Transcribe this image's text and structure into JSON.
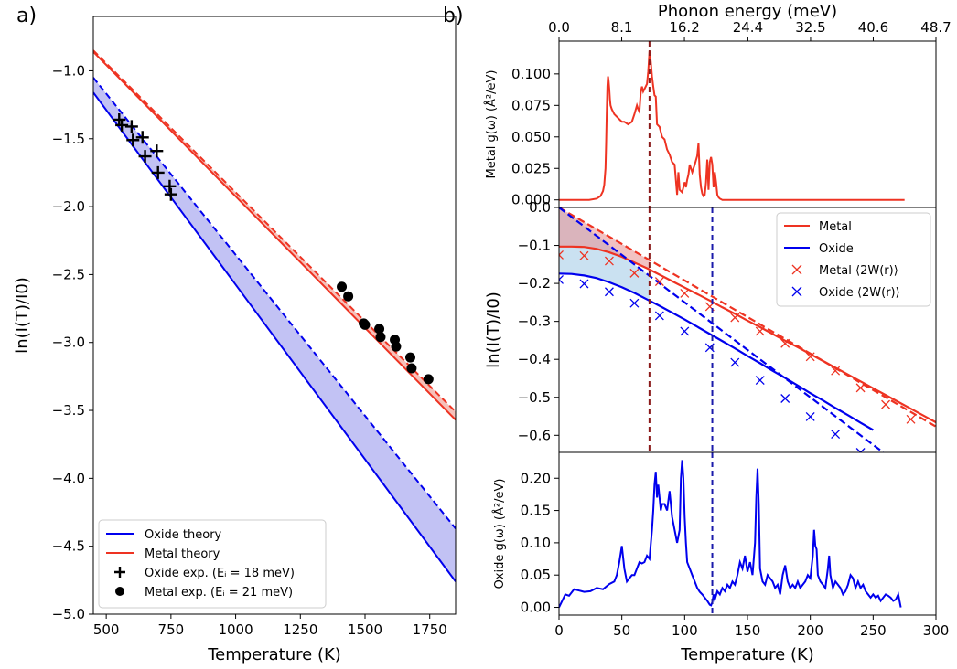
{
  "panel_labels": {
    "a": "a)",
    "b": "b)"
  },
  "chart_data": [
    {
      "id": "a",
      "type": "line",
      "xlabel": "Temperature (K)",
      "ylabel": "ln(I(T)/I0)",
      "xlim": [
        450,
        1850
      ],
      "ylim": [
        -5.0,
        -0.6
      ],
      "xticks": [
        500,
        750,
        1000,
        1250,
        1500,
        1750
      ],
      "xtick_labels": [
        "500",
        "750",
        "1000",
        "1250",
        "1500",
        "1750"
      ],
      "yticks": [
        -5.0,
        -4.5,
        -4.0,
        -3.5,
        -3.0,
        -2.5,
        -2.0,
        -1.5,
        -1.0
      ],
      "ytick_labels": [
        "−5.0",
        "−4.5",
        "−4.0",
        "−3.5",
        "−3.0",
        "−2.5",
        "−2.0",
        "−1.5",
        "−1.0"
      ],
      "colors": {
        "oxide": "#0000ee",
        "metal": "#ee3322",
        "oxide_fill": "#b7b7f2",
        "metal_fill": "#f5b5ad"
      },
      "series": [
        {
          "name": "oxide_solid",
          "x": [
            450,
            1850
          ],
          "y": [
            -1.16,
            -4.76
          ]
        },
        {
          "name": "oxide_dashed",
          "x": [
            450,
            1850
          ],
          "y": [
            -1.05,
            -4.37
          ]
        },
        {
          "name": "metal_solid",
          "x": [
            450,
            1850
          ],
          "y": [
            -0.86,
            -3.57
          ]
        },
        {
          "name": "metal_dashed",
          "x": [
            450,
            1850
          ],
          "y": [
            -0.85,
            -3.51
          ]
        },
        {
          "name": "Oxide exp.",
          "marker": "+",
          "x": [
            550,
            560,
            598,
            603,
            640,
            650,
            695,
            700,
            745,
            750
          ],
          "y": [
            -1.36,
            -1.4,
            -1.41,
            -1.51,
            -1.49,
            -1.63,
            -1.59,
            -1.75,
            -1.85,
            -1.91
          ]
        },
        {
          "name": "Metal exp.",
          "marker": "o",
          "x": [
            1410,
            1435,
            1495,
            1500,
            1555,
            1560,
            1615,
            1620,
            1675,
            1680,
            1745
          ],
          "y": [
            -2.59,
            -2.66,
            -2.86,
            -2.87,
            -2.9,
            -2.96,
            -2.98,
            -3.03,
            -3.11,
            -3.19,
            -3.27
          ]
        }
      ],
      "legend": {
        "position": "bottom-left",
        "entries": [
          "Oxide theory",
          "Metal theory",
          "Oxide exp. (Eᵢ =  18 meV)",
          "Metal exp. (Eᵢ =  21 meV)"
        ]
      }
    },
    {
      "id": "b-top",
      "type": "line",
      "top_xlabel": "Phonon energy (meV)",
      "top_xlim": [
        0,
        48.7
      ],
      "top_xticks": [
        0,
        8.1,
        16.2,
        24.4,
        32.5,
        40.6,
        48.7
      ],
      "top_xtick_labels": [
        "0.0",
        "8.1",
        "16.2",
        "24.4",
        "32.5",
        "40.6",
        "48.7"
      ],
      "ylabel": "Metal g(ω) (Å²/eV)",
      "ylim": [
        -0.006,
        0.126
      ],
      "yticks": [
        0.0,
        0.025,
        0.05,
        0.075,
        0.1
      ],
      "ytick_labels": [
        "0.000",
        "0.025",
        "0.050",
        "0.075",
        "0.100"
      ],
      "xlim_temperature": [
        0,
        300
      ],
      "series": [
        {
          "name": "Metal DOS",
          "color": "#ee3322",
          "x": [
            0,
            24,
            30,
            33,
            35,
            36,
            37,
            37.5,
            38,
            38.5,
            39,
            39.5,
            40,
            40.5,
            41,
            42,
            43,
            44,
            45,
            46,
            48,
            50,
            52,
            55,
            58,
            60,
            62,
            63,
            64,
            65,
            66,
            67,
            68,
            69,
            70,
            71,
            72,
            73,
            74,
            75,
            76,
            77,
            78,
            80,
            82,
            84,
            86,
            88,
            90,
            92,
            93,
            94,
            95,
            96,
            98,
            100,
            101,
            102,
            103,
            104,
            106,
            108,
            110,
            111,
            112,
            113,
            114,
            115,
            116,
            117,
            118,
            119,
            120,
            121,
            122,
            123,
            124,
            125,
            126,
            127,
            128,
            130,
            135,
            140,
            150,
            200,
            260,
            275
          ],
          "y": [
            0.0,
            0.0,
            0.001,
            0.003,
            0.007,
            0.012,
            0.025,
            0.045,
            0.07,
            0.09,
            0.098,
            0.094,
            0.088,
            0.08,
            0.075,
            0.072,
            0.07,
            0.068,
            0.067,
            0.066,
            0.064,
            0.062,
            0.062,
            0.06,
            0.062,
            0.068,
            0.075,
            0.072,
            0.07,
            0.085,
            0.09,
            0.086,
            0.088,
            0.09,
            0.092,
            0.102,
            0.118,
            0.11,
            0.098,
            0.09,
            0.083,
            0.082,
            0.06,
            0.058,
            0.05,
            0.048,
            0.04,
            0.036,
            0.03,
            0.028,
            0.016,
            0.004,
            0.022,
            0.008,
            0.006,
            0.014,
            0.01,
            0.016,
            0.02,
            0.028,
            0.022,
            0.028,
            0.035,
            0.045,
            0.02,
            0.01,
            0.005,
            0.003,
            0.004,
            0.014,
            0.032,
            0.008,
            0.03,
            0.034,
            0.028,
            0.01,
            0.022,
            0.014,
            0.004,
            0.002,
            0.001,
            0.0,
            0.0,
            0.0,
            0.0,
            0.0,
            0.0,
            0.0
          ]
        }
      ],
      "vlines": [
        {
          "x": 72,
          "color": "#8b1a1a"
        }
      ]
    },
    {
      "id": "b-mid",
      "type": "line",
      "ylabel": "ln(I(T)/I0)",
      "xlim": [
        0,
        300
      ],
      "ylim": [
        -0.645,
        0.0
      ],
      "yticks": [
        0.0,
        -0.1,
        -0.2,
        -0.3,
        -0.4,
        -0.5,
        -0.6
      ],
      "ytick_labels": [
        "0.0",
        "−0.1",
        "−0.2",
        "−0.3",
        "−0.4",
        "−0.5",
        "−0.6"
      ],
      "series": [
        {
          "name": "Metal",
          "color": "#ee3322",
          "style": "solid",
          "x": [
            0,
            10,
            20,
            30,
            40,
            50,
            60,
            70,
            80,
            90,
            100,
            110,
            120,
            130,
            140,
            150,
            160,
            170,
            180,
            190,
            200,
            210,
            220,
            230,
            240,
            250,
            260,
            270,
            280,
            290,
            300
          ],
          "y": [
            -0.103,
            -0.103,
            -0.104,
            -0.109,
            -0.118,
            -0.13,
            -0.145,
            -0.16,
            -0.177,
            -0.194,
            -0.211,
            -0.228,
            -0.245,
            -0.263,
            -0.28,
            -0.298,
            -0.315,
            -0.333,
            -0.351,
            -0.368,
            -0.386,
            -0.404,
            -0.422,
            -0.44,
            -0.458,
            -0.476,
            -0.494,
            -0.512,
            -0.53,
            -0.548,
            -0.566
          ]
        },
        {
          "name": "Metal dashed",
          "color": "#ee3322",
          "style": "dashed",
          "x": [
            0,
            300
          ],
          "y": [
            0.0,
            -0.577
          ]
        },
        {
          "name": "Oxide",
          "color": "#0000ee",
          "style": "solid",
          "x": [
            0,
            10,
            20,
            30,
            40,
            50,
            60,
            70,
            80,
            90,
            100,
            110,
            120,
            130,
            140,
            150,
            160,
            170,
            180,
            190,
            200,
            210,
            220,
            230,
            240,
            250
          ],
          "y": [
            -0.174,
            -0.175,
            -0.179,
            -0.186,
            -0.197,
            -0.21,
            -0.225,
            -0.242,
            -0.259,
            -0.277,
            -0.295,
            -0.314,
            -0.333,
            -0.352,
            -0.371,
            -0.391,
            -0.41,
            -0.43,
            -0.449,
            -0.469,
            -0.489,
            -0.508,
            -0.528,
            -0.547,
            -0.567,
            -0.586
          ]
        },
        {
          "name": "Oxide dashed",
          "color": "#0000ee",
          "style": "dashed",
          "x": [
            0,
            258
          ],
          "y": [
            0.0,
            -0.645
          ]
        },
        {
          "name": "Metal ⟨2W(r)⟩",
          "marker": "x",
          "color": "#ee3322",
          "x": [
            0,
            20,
            40,
            60,
            80,
            100,
            120,
            140,
            160,
            180,
            200,
            220,
            240,
            260,
            280
          ],
          "y": [
            -0.125,
            -0.127,
            -0.141,
            -0.173,
            -0.195,
            -0.226,
            -0.261,
            -0.29,
            -0.326,
            -0.358,
            -0.393,
            -0.43,
            -0.475,
            -0.519,
            -0.558
          ]
        },
        {
          "name": "Oxide ⟨2W(r)⟩",
          "marker": "x",
          "color": "#0000ee",
          "x": [
            0,
            20,
            40,
            60,
            80,
            100,
            120,
            140,
            160,
            180,
            200,
            220,
            240
          ],
          "y": [
            -0.19,
            -0.201,
            -0.222,
            -0.252,
            -0.285,
            -0.326,
            -0.369,
            -0.408,
            -0.455,
            -0.503,
            -0.551,
            -0.597,
            -0.645
          ]
        }
      ],
      "vlines": [
        {
          "x": 72,
          "color": "#8b1a1a"
        },
        {
          "x": 122,
          "color": "#1a1aaa"
        }
      ],
      "legend": {
        "position": "top-right",
        "entries": [
          "Metal",
          "Oxide",
          "Metal ⟨2W(r)⟩",
          "Oxide ⟨2W(r)⟩"
        ]
      }
    },
    {
      "id": "b-bot",
      "type": "line",
      "xlabel": "Temperature (K)",
      "ylabel": "Oxide g(ω) (Å²/eV)",
      "xlim": [
        0,
        300
      ],
      "ylim": [
        -0.012,
        0.24
      ],
      "xticks": [
        0,
        50,
        100,
        150,
        200,
        250,
        300
      ],
      "xtick_labels": [
        "0",
        "50",
        "100",
        "150",
        "200",
        "250",
        "300"
      ],
      "yticks": [
        0.0,
        0.05,
        0.1,
        0.15,
        0.2
      ],
      "ytick_labels": [
        "0.00",
        "0.05",
        "0.10",
        "0.15",
        "0.20"
      ],
      "series": [
        {
          "name": "Oxide DOS",
          "color": "#0000ee",
          "x": [
            0,
            3,
            5,
            8,
            12,
            16,
            20,
            25,
            30,
            35,
            40,
            44,
            46,
            48,
            50,
            52,
            54,
            56,
            58,
            60,
            62,
            64,
            66,
            68,
            70,
            72,
            74,
            75,
            76,
            77,
            78,
            79,
            80,
            81,
            82,
            84,
            86,
            88,
            90,
            92,
            94,
            96,
            97,
            98,
            99,
            100,
            101,
            102,
            104,
            106,
            108,
            110,
            112,
            114,
            116,
            118,
            120,
            121,
            122,
            123,
            124,
            126,
            128,
            130,
            132,
            134,
            136,
            138,
            140,
            142,
            144,
            146,
            148,
            150,
            152,
            154,
            156,
            157,
            158,
            159,
            160,
            162,
            164,
            166,
            168,
            170,
            172,
            174,
            176,
            178,
            180,
            182,
            184,
            186,
            188,
            190,
            192,
            194,
            196,
            198,
            200,
            202,
            203,
            204,
            205,
            206,
            208,
            210,
            212,
            214,
            215,
            216,
            218,
            220,
            222,
            224,
            226,
            228,
            230,
            232,
            234,
            236,
            238,
            240,
            242,
            244,
            246,
            248,
            250,
            252,
            254,
            256,
            258,
            260,
            262,
            264,
            266,
            268,
            270,
            272
          ],
          "y": [
            0.0,
            0.012,
            0.02,
            0.018,
            0.028,
            0.026,
            0.024,
            0.025,
            0.03,
            0.028,
            0.036,
            0.04,
            0.05,
            0.07,
            0.095,
            0.06,
            0.04,
            0.045,
            0.05,
            0.05,
            0.06,
            0.07,
            0.068,
            0.07,
            0.08,
            0.075,
            0.12,
            0.15,
            0.19,
            0.21,
            0.17,
            0.19,
            0.17,
            0.15,
            0.16,
            0.16,
            0.15,
            0.18,
            0.14,
            0.12,
            0.1,
            0.12,
            0.2,
            0.228,
            0.2,
            0.14,
            0.1,
            0.07,
            0.06,
            0.05,
            0.04,
            0.03,
            0.024,
            0.02,
            0.015,
            0.01,
            0.004,
            0.003,
            0.008,
            0.02,
            0.012,
            0.025,
            0.02,
            0.03,
            0.025,
            0.035,
            0.03,
            0.04,
            0.035,
            0.05,
            0.07,
            0.06,
            0.08,
            0.055,
            0.07,
            0.05,
            0.1,
            0.17,
            0.215,
            0.16,
            0.06,
            0.04,
            0.035,
            0.05,
            0.045,
            0.04,
            0.03,
            0.035,
            0.02,
            0.05,
            0.065,
            0.04,
            0.03,
            0.035,
            0.03,
            0.04,
            0.03,
            0.035,
            0.04,
            0.05,
            0.045,
            0.08,
            0.12,
            0.095,
            0.09,
            0.05,
            0.04,
            0.035,
            0.03,
            0.06,
            0.08,
            0.05,
            0.03,
            0.04,
            0.035,
            0.03,
            0.02,
            0.025,
            0.035,
            0.05,
            0.045,
            0.03,
            0.04,
            0.03,
            0.035,
            0.025,
            0.02,
            0.015,
            0.02,
            0.015,
            0.018,
            0.01,
            0.015,
            0.02,
            0.018,
            0.015,
            0.01,
            0.012,
            0.02,
            0.0
          ]
        }
      ],
      "vlines": [
        {
          "x": 122,
          "color": "#1a1aaa"
        }
      ]
    }
  ]
}
